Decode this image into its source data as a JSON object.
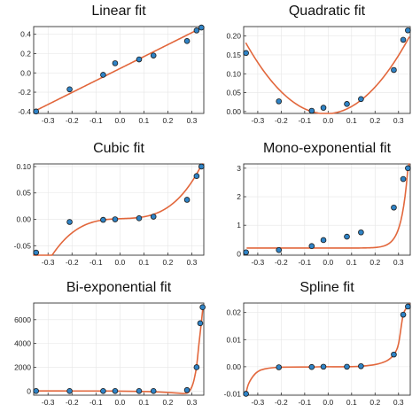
{
  "colors": {
    "fit_line": "#e2673c",
    "points": "#2f83c6",
    "grid": "#e6e6e6",
    "frame": "#333333"
  },
  "chart_data": [
    {
      "type": "scatter",
      "title": "Linear fit",
      "xlim": [
        -0.36,
        0.35
      ],
      "ylim": [
        -0.42,
        0.48
      ],
      "xticks": [
        -0.3,
        -0.2,
        -0.1,
        0.0,
        0.1,
        0.2,
        0.3
      ],
      "yticks": [
        -0.4,
        -0.2,
        0.0,
        0.2,
        0.4
      ],
      "ytick_labels": [
        "-0.4",
        "-0.2",
        "0.0",
        "0.2",
        "0.4"
      ],
      "grid": true,
      "points": [
        [
          -0.35,
          -0.4
        ],
        [
          -0.21,
          -0.17
        ],
        [
          -0.07,
          -0.02
        ],
        [
          -0.02,
          0.1
        ],
        [
          0.08,
          0.14
        ],
        [
          0.14,
          0.18
        ],
        [
          0.28,
          0.33
        ],
        [
          0.32,
          0.44
        ],
        [
          0.34,
          0.47
        ]
      ],
      "fit": {
        "kind": "linear",
        "coefficients": [
          0.045,
          1.24
        ],
        "range": [
          -0.36,
          0.345
        ]
      }
    },
    {
      "type": "scatter",
      "title": "Quadratic fit",
      "xlim": [
        -0.36,
        0.35
      ],
      "ylim": [
        -0.005,
        0.225
      ],
      "xticks": [
        -0.3,
        -0.2,
        -0.1,
        0.0,
        0.1,
        0.2,
        0.3
      ],
      "yticks": [
        0.0,
        0.05,
        0.1,
        0.15,
        0.2
      ],
      "ytick_labels": [
        "0.00",
        "0.05",
        "0.10",
        "0.15",
        "0.20"
      ],
      "grid": true,
      "points": [
        [
          -0.35,
          0.155
        ],
        [
          -0.21,
          0.027
        ],
        [
          -0.07,
          0.002
        ],
        [
          -0.02,
          0.01
        ],
        [
          0.08,
          0.02
        ],
        [
          0.14,
          0.033
        ],
        [
          0.28,
          0.11
        ],
        [
          0.32,
          0.19
        ],
        [
          0.34,
          0.215
        ]
      ],
      "fit": {
        "kind": "quadratic",
        "coefficients": [
          -0.0058,
          0.0308,
          1.612
        ],
        "range": [
          -0.35,
          0.345
        ]
      }
    },
    {
      "type": "scatter",
      "title": "Cubic fit",
      "xlim": [
        -0.36,
        0.35
      ],
      "ylim": [
        -0.068,
        0.105
      ],
      "xticks": [
        -0.3,
        -0.2,
        -0.1,
        0.0,
        0.1,
        0.2,
        0.3
      ],
      "yticks": [
        -0.05,
        0.0,
        0.05,
        0.1
      ],
      "ytick_labels": [
        "-0.05",
        "0.00",
        "0.05",
        "0.10"
      ],
      "grid": true,
      "points": [
        [
          -0.35,
          -0.063
        ],
        [
          -0.21,
          -0.005
        ],
        [
          -0.07,
          -0.001
        ],
        [
          -0.02,
          0.0
        ],
        [
          0.08,
          0.002
        ],
        [
          0.14,
          0.005
        ],
        [
          0.28,
          0.037
        ],
        [
          0.32,
          0.082
        ],
        [
          0.34,
          0.1
        ]
      ],
      "fit": {
        "kind": "cubic",
        "coefficients": [
          0.00116,
          0.0167,
          -0.064,
          2.62
        ],
        "range": [
          -0.36,
          0.345
        ]
      }
    },
    {
      "type": "scatter",
      "title": "Mono-exponential fit",
      "xlim": [
        -0.36,
        0.35
      ],
      "ylim": [
        -0.05,
        3.15
      ],
      "xticks": [
        -0.3,
        -0.2,
        -0.1,
        0.0,
        0.1,
        0.2,
        0.3
      ],
      "yticks": [
        0,
        1,
        2,
        3
      ],
      "ytick_labels": [
        "0",
        "1",
        "2",
        "3"
      ],
      "grid": true,
      "points": [
        [
          -0.35,
          0.05
        ],
        [
          -0.21,
          0.13
        ],
        [
          -0.07,
          0.27
        ],
        [
          -0.02,
          0.48
        ],
        [
          0.08,
          0.6
        ],
        [
          0.14,
          0.75
        ],
        [
          0.28,
          1.62
        ],
        [
          0.32,
          2.62
        ],
        [
          0.34,
          3.0
        ]
      ],
      "fit": {
        "kind": "mono-exponential",
        "coefficients": [
          0.2,
          1.6e-05,
          35.5
        ],
        "range": [
          -0.345,
          0.345
        ]
      }
    },
    {
      "type": "scatter",
      "title": "Bi-exponential fit",
      "xlim": [
        -0.36,
        0.35
      ],
      "ylim": [
        -350,
        7400
      ],
      "xticks": [
        -0.3,
        -0.2,
        -0.1,
        0.0,
        0.1,
        0.2,
        0.3
      ],
      "yticks": [
        0,
        2000,
        4000,
        6000
      ],
      "ytick_labels": [
        "0",
        "2000",
        "4000",
        "6000"
      ],
      "grid": true,
      "points": [
        [
          -0.35,
          0
        ],
        [
          -0.21,
          0
        ],
        [
          -0.07,
          0
        ],
        [
          -0.02,
          0
        ],
        [
          0.08,
          0
        ],
        [
          0.14,
          0
        ],
        [
          0.28,
          80
        ],
        [
          0.32,
          2000
        ],
        [
          0.335,
          5700
        ],
        [
          0.345,
          7050
        ]
      ],
      "fit": {
        "kind": "bi-exponential",
        "knots": [
          [
            -0.35,
            10
          ],
          [
            -0.2,
            5
          ],
          [
            -0.05,
            0
          ],
          [
            0.1,
            -40
          ],
          [
            0.2,
            -120
          ],
          [
            0.25,
            -190
          ],
          [
            0.27,
            -200
          ],
          [
            0.285,
            -120
          ],
          [
            0.3,
            350
          ],
          [
            0.31,
            1000
          ],
          [
            0.32,
            2100
          ],
          [
            0.33,
            4000
          ],
          [
            0.34,
            5800
          ],
          [
            0.347,
            7150
          ]
        ]
      }
    },
    {
      "type": "scatter",
      "title": "Spline fit",
      "xlim": [
        -0.36,
        0.35
      ],
      "ylim": [
        -0.0105,
        0.0235
      ],
      "xticks": [
        -0.3,
        -0.2,
        -0.1,
        0.0,
        0.1,
        0.2,
        0.3
      ],
      "yticks": [
        -0.01,
        0.0,
        0.01,
        0.02
      ],
      "ytick_labels": [
        "-0.01",
        "0.00",
        "0.01",
        "0.02"
      ],
      "grid": true,
      "points": [
        [
          -0.35,
          -0.01
        ],
        [
          -0.21,
          -0.0002
        ],
        [
          -0.07,
          -0.0001
        ],
        [
          -0.02,
          0.0
        ],
        [
          0.08,
          0.0
        ],
        [
          0.14,
          0.0002
        ],
        [
          0.28,
          0.0045
        ],
        [
          0.32,
          0.0192
        ],
        [
          0.34,
          0.0222
        ]
      ],
      "fit": {
        "kind": "spline",
        "knots": [
          [
            -0.352,
            -0.0105
          ],
          [
            -0.34,
            -0.0065
          ],
          [
            -0.32,
            -0.0035
          ],
          [
            -0.3,
            -0.0018
          ],
          [
            -0.27,
            -0.0008
          ],
          [
            -0.21,
            -0.0002
          ],
          [
            -0.07,
            -0.0001
          ],
          [
            -0.02,
            0.0
          ],
          [
            0.08,
            0.0
          ],
          [
            0.14,
            0.0002
          ],
          [
            0.2,
            0.0008
          ],
          [
            0.25,
            0.0022
          ],
          [
            0.28,
            0.0045
          ],
          [
            0.3,
            0.0085
          ],
          [
            0.32,
            0.0192
          ],
          [
            0.34,
            0.0222
          ],
          [
            0.347,
            0.0232
          ]
        ]
      }
    }
  ]
}
